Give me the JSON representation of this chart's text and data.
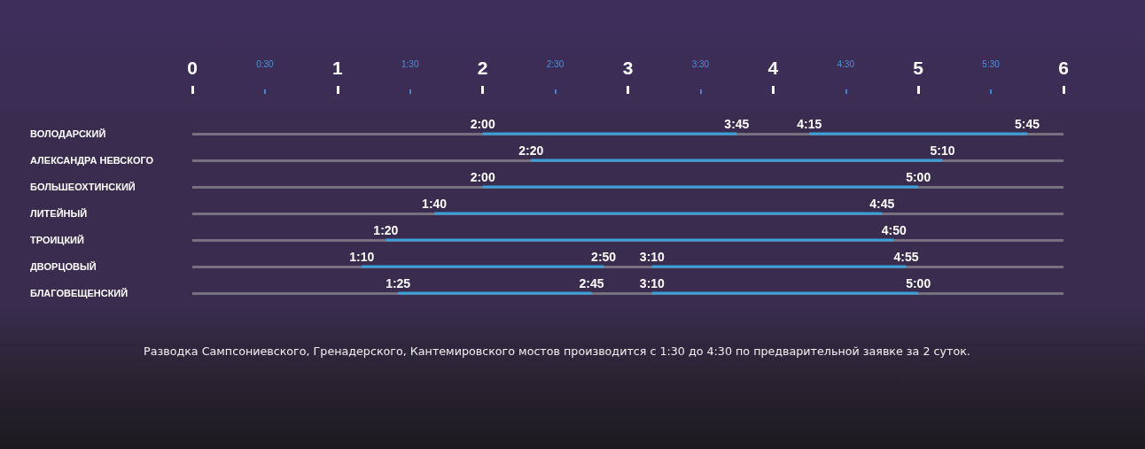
{
  "chart_data": {
    "type": "bar",
    "orientation": "horizontal",
    "categories": [
      "ВОЛОДАРСКИЙ",
      "АЛЕКСАНДРА НЕВСКОГО",
      "БОЛЬШЕОХТИНСКИЙ",
      "ЛИТЕЙНЫЙ",
      "ТРОИЦКИЙ",
      "ДВОРЦОВЫЙ",
      "БЛАГОВЕЩЕНСКИЙ"
    ],
    "series": [
      {
        "color": "#3b9fda",
        "base": [
          2,
          2.333,
          2,
          1.667,
          1.333,
          1.167,
          1.417
        ],
        "values": [
          1.75,
          2.833,
          3,
          3.083,
          3.5,
          1.667,
          1.333
        ]
      },
      {
        "color": "#3b9fda",
        "base": [
          4.25,
          null,
          null,
          null,
          null,
          3.167,
          3.167
        ],
        "values": [
          1.5,
          null,
          null,
          null,
          null,
          1.75,
          1.833
        ]
      }
    ],
    "xlim": [
      0,
      6
    ],
    "xticks": [
      0,
      1,
      2,
      3,
      4,
      5,
      6
    ],
    "x2lim": [
      0,
      6
    ],
    "x2ticks": [
      {
        "value": 0.5,
        "label": "0:30"
      },
      {
        "value": 1.5,
        "label": "1:30"
      },
      {
        "value": 2.5,
        "label": "2:30"
      },
      {
        "value": 3.5,
        "label": "3:30"
      },
      {
        "value": 4.5,
        "label": "4:30"
      },
      {
        "value": 5.5,
        "label": "5:30"
      }
    ],
    "grid": "y",
    "annotations": [
      {
        "text": "2:00",
        "x": 2,
        "y": "ВОЛОДАРСКИЙ"
      },
      {
        "text": "3:45",
        "x": 3.75,
        "y": "ВОЛОДАРСКИЙ"
      },
      {
        "text": "4:15",
        "x": 4.25,
        "y": "ВОЛОДАРСКИЙ"
      },
      {
        "text": "5:45",
        "x": 5.75,
        "y": "ВОЛОДАРСКИЙ"
      },
      {
        "text": "2:20",
        "x": 2.333,
        "y": "АЛЕКСАНДРА НЕВСКОГО"
      },
      {
        "text": "5:10",
        "x": 5.167,
        "y": "АЛЕКСАНДРА НЕВСКОГО"
      },
      {
        "text": "2:00",
        "x": 2,
        "y": "БОЛЬШЕОХТИНСКИЙ"
      },
      {
        "text": "5:00",
        "x": 5,
        "y": "БОЛЬШЕОХТИНСКИЙ"
      },
      {
        "text": "1:40",
        "x": 1.667,
        "y": "ЛИТЕЙНЫЙ"
      },
      {
        "text": "4:45",
        "x": 4.75,
        "y": "ЛИТЕЙНЫЙ"
      },
      {
        "text": "1:20",
        "x": 1.333,
        "y": "ТРОИЦКИЙ"
      },
      {
        "text": "4:50",
        "x": 4.833,
        "y": "ТРОИЦКИЙ"
      },
      {
        "text": "1:10",
        "x": 1.167,
        "y": "ДВОРЦОВЫЙ"
      },
      {
        "text": "2:50",
        "x": 2.833,
        "y": "ДВОРЦОВЫЙ"
      },
      {
        "text": "3:10",
        "x": 3.167,
        "y": "ДВОРЦОВЫЙ"
      },
      {
        "text": "4:55",
        "x": 4.917,
        "y": "ДВОРЦОВЫЙ"
      },
      {
        "text": "1:25",
        "x": 1.417,
        "y": "БЛАГОВЕЩЕНСКИЙ"
      },
      {
        "text": "2:45",
        "x": 2.75,
        "y": "БЛАГОВЕЩЕНСКИЙ"
      },
      {
        "text": "3:10",
        "x": 3.167,
        "y": "БЛАГОВЕЩЕНСКИЙ"
      },
      {
        "text": "5:00",
        "x": 5,
        "y": "БЛАГОВЕЩЕНСКИЙ"
      },
      "Разводка Сампсониевского, Гренадерского, Кантемировского мостов производится с 1:30 до 4:30 по предварительной заявке за 2 суток."
    ]
  }
}
